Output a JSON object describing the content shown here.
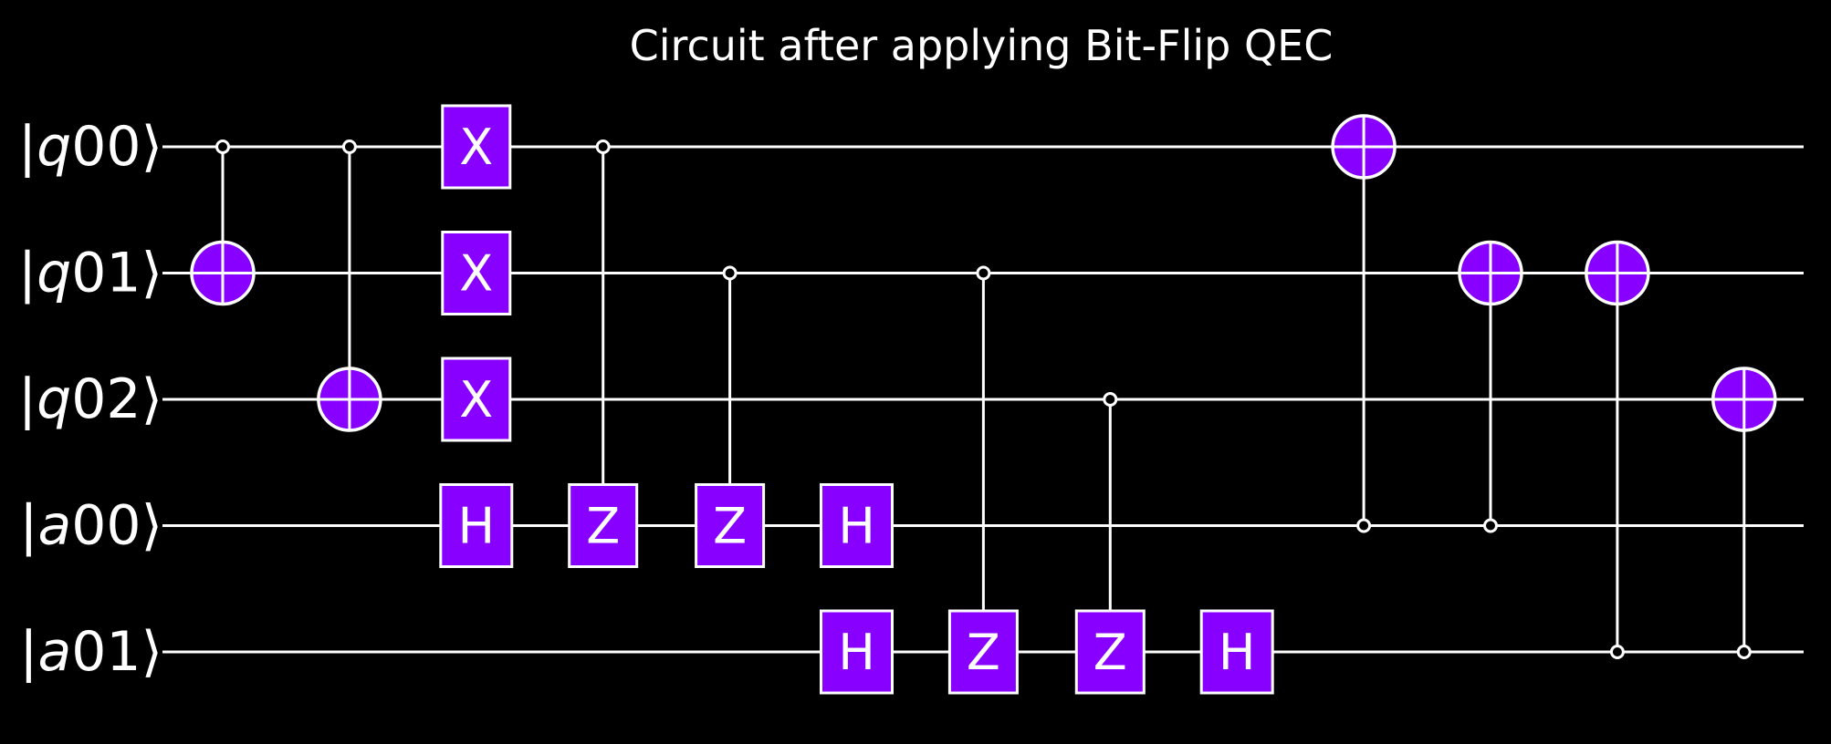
{
  "title": "Circuit after applying Bit-Flip QEC",
  "colors": {
    "background": "#000000",
    "gate_fill": "#8800ff",
    "line": "#ffffff"
  },
  "qubits": [
    {
      "id": "q00",
      "ket_open": "|",
      "letter": "q",
      "index": "00",
      "ket_close": "⟩"
    },
    {
      "id": "q01",
      "ket_open": "|",
      "letter": "q",
      "index": "01",
      "ket_close": "⟩"
    },
    {
      "id": "q02",
      "ket_open": "|",
      "letter": "q",
      "index": "02",
      "ket_close": "⟩"
    },
    {
      "id": "a00",
      "ket_open": "|",
      "letter": "a",
      "index": "00",
      "ket_close": "⟩"
    },
    {
      "id": "a01",
      "ket_open": "|",
      "letter": "a",
      "index": "01",
      "ket_close": "⟩"
    }
  ],
  "operations": [
    {
      "type": "cnot",
      "column": 0,
      "control": 0,
      "target": 1
    },
    {
      "type": "cnot",
      "column": 1,
      "control": 0,
      "target": 2
    },
    {
      "type": "gate",
      "column": 2,
      "qubit": 0,
      "label": "X"
    },
    {
      "type": "gate",
      "column": 2,
      "qubit": 1,
      "label": "X"
    },
    {
      "type": "gate",
      "column": 2,
      "qubit": 2,
      "label": "X"
    },
    {
      "type": "gate",
      "column": 2,
      "qubit": 3,
      "label": "H"
    },
    {
      "type": "cz",
      "column": 3,
      "control": 0,
      "target": 3,
      "label": "Z"
    },
    {
      "type": "cz",
      "column": 4,
      "control": 1,
      "target": 3,
      "label": "Z"
    },
    {
      "type": "gate",
      "column": 5,
      "qubit": 3,
      "label": "H"
    },
    {
      "type": "gate",
      "column": 5,
      "qubit": 4,
      "label": "H"
    },
    {
      "type": "cz",
      "column": 6,
      "control": 1,
      "target": 4,
      "label": "Z"
    },
    {
      "type": "cz",
      "column": 7,
      "control": 2,
      "target": 4,
      "label": "Z"
    },
    {
      "type": "gate",
      "column": 8,
      "qubit": 4,
      "label": "H"
    },
    {
      "type": "cnot",
      "column": 9,
      "control": 3,
      "target": 0
    },
    {
      "type": "cnot",
      "column": 10,
      "control": 3,
      "target": 1
    },
    {
      "type": "cnot",
      "column": 11,
      "control": 4,
      "target": 1
    },
    {
      "type": "cnot",
      "column": 12,
      "control": 4,
      "target": 2
    }
  ]
}
